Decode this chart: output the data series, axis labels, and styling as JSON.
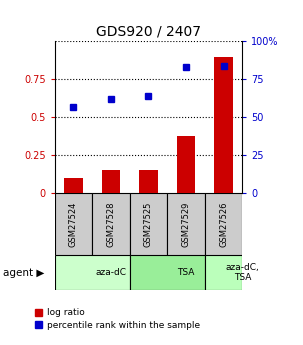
{
  "title": "GDS920 / 2407",
  "samples": [
    "GSM27524",
    "GSM27528",
    "GSM27525",
    "GSM27529",
    "GSM27526"
  ],
  "log_ratio": [
    0.1,
    0.15,
    0.15,
    0.38,
    0.9
  ],
  "percentile_rank": [
    0.57,
    0.62,
    0.64,
    0.83,
    0.84
  ],
  "bar_color": "#cc0000",
  "dot_color": "#0000cc",
  "ylim_left": [
    0,
    1
  ],
  "yticks_left": [
    0,
    0.25,
    0.5,
    0.75
  ],
  "yticks_left_labels": [
    "0",
    "0.25",
    "0.5",
    "0.75"
  ],
  "yticks_right": [
    0,
    25,
    50,
    75,
    100
  ],
  "yticks_right_labels": [
    "0",
    "25",
    "50",
    "75",
    "100%"
  ],
  "agent_groups": [
    {
      "label": "aza-dC",
      "start": 0,
      "end": 2,
      "color": "#ccffcc"
    },
    {
      "label": "TSA",
      "start": 2,
      "end": 4,
      "color": "#99ee99"
    },
    {
      "label": "aza-dC,\nTSA",
      "start": 4,
      "end": 5,
      "color": "#bbffbb"
    }
  ],
  "legend_bar_label": "log ratio",
  "legend_dot_label": "percentile rank within the sample",
  "bar_width": 0.5,
  "cell_color": "#cccccc"
}
